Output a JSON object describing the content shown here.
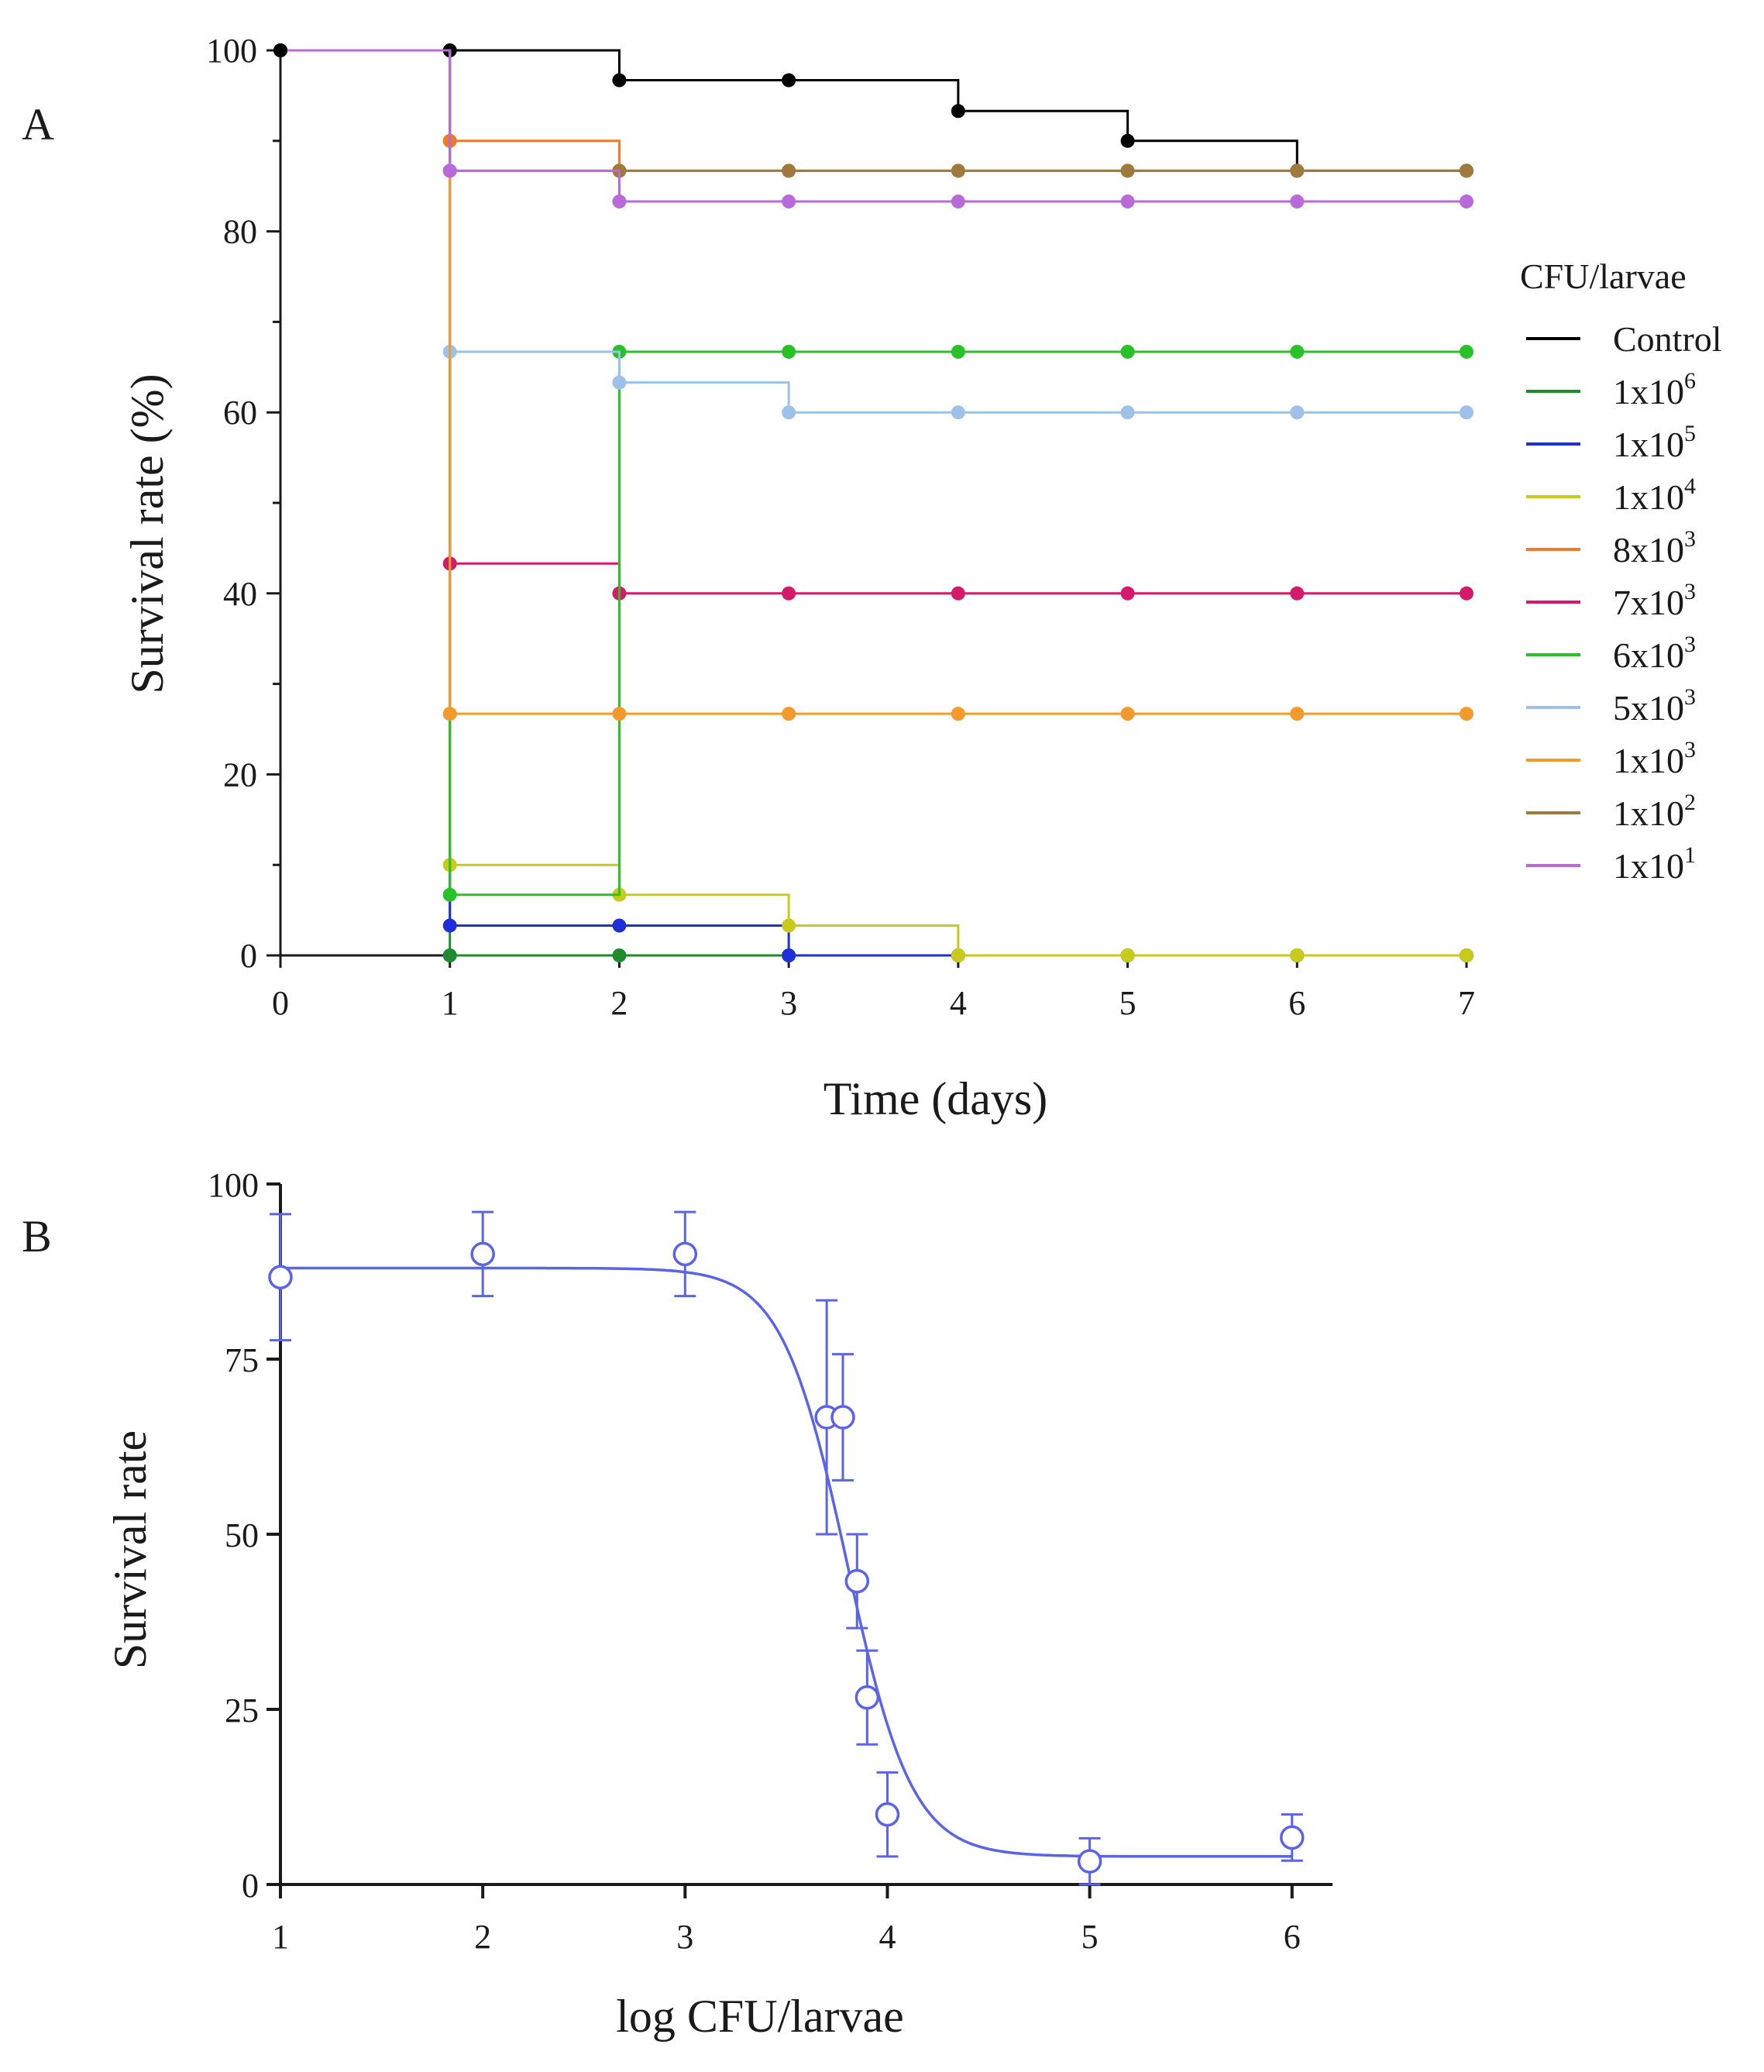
{
  "chart_data": [
    {
      "panel": "A",
      "type": "line",
      "step": true,
      "xlabel": "Time (days)",
      "ylabel": "Survival rate (%)",
      "xlim": [
        0,
        7
      ],
      "ylim": [
        0,
        100
      ],
      "xticks": [
        "0",
        "1",
        "2",
        "3",
        "4",
        "5",
        "6",
        "7"
      ],
      "yticks": [
        "0",
        "20",
        "40",
        "60",
        "80",
        "100"
      ],
      "grid": false,
      "legend": {
        "title": "CFU/larvae",
        "position": "right"
      },
      "series": [
        {
          "name": "Control",
          "mant": "Control",
          "exp": "",
          "color": "#000000",
          "x": [
            0,
            1,
            2,
            3,
            4,
            5,
            6,
            7
          ],
          "values": [
            100,
            100,
            96.7,
            96.7,
            93.3,
            90,
            86.7,
            86.7
          ]
        },
        {
          "name": "1x10^6",
          "mant": "1x10",
          "exp": "6",
          "color": "#1f8a2e",
          "x": [
            1,
            2,
            3,
            4,
            5,
            6,
            7
          ],
          "values": [
            0,
            0,
            0,
            0,
            0,
            0,
            0
          ]
        },
        {
          "name": "1x10^5",
          "mant": "1x10",
          "exp": "5",
          "color": "#1f2fd8",
          "x": [
            1,
            2,
            3,
            4,
            5,
            6,
            7
          ],
          "values": [
            3.3,
            3.3,
            0,
            0,
            0,
            0,
            0
          ]
        },
        {
          "name": "1x10^4",
          "mant": "1x10",
          "exp": "4",
          "color": "#c9cb1c",
          "x": [
            1,
            2,
            3,
            4,
            5,
            6,
            7
          ],
          "values": [
            10,
            6.7,
            3.3,
            0,
            0,
            0,
            0
          ]
        },
        {
          "name": "8x10^3",
          "mant": "8x10",
          "exp": "3",
          "color": "#f07a2a",
          "x": [
            1,
            2,
            3,
            4,
            5,
            6,
            7
          ],
          "values": [
            90,
            86.7,
            86.7,
            86.7,
            86.7,
            86.7,
            86.7
          ]
        },
        {
          "name": "7x10^3",
          "mant": "7x10",
          "exp": "3",
          "color": "#d41a6b",
          "x": [
            1,
            2,
            3,
            4,
            5,
            6,
            7
          ],
          "values": [
            43.3,
            40,
            40,
            40,
            40,
            40,
            40
          ]
        },
        {
          "name": "6x10^3",
          "mant": "6x10",
          "exp": "3",
          "color": "#28c128",
          "x": [
            1,
            2,
            3,
            4,
            5,
            6,
            7
          ],
          "values": [
            6.7,
            66.7,
            66.7,
            66.7,
            66.7,
            66.7,
            66.7
          ]
        },
        {
          "name": "5x10^3",
          "mant": "5x10",
          "exp": "3",
          "color": "#9ec1ea",
          "x": [
            1,
            2,
            3,
            4,
            5,
            6,
            7
          ],
          "values": [
            66.7,
            63.3,
            60,
            60,
            60,
            60,
            60
          ]
        },
        {
          "name": "1x10^3",
          "mant": "1x10",
          "exp": "3",
          "color": "#f29a2c",
          "x": [
            1,
            2,
            3,
            4,
            5,
            6,
            7
          ],
          "values": [
            26.7,
            26.7,
            26.7,
            26.7,
            26.7,
            26.7,
            26.7
          ]
        },
        {
          "name": "1x10^2",
          "mant": "1x10",
          "exp": "2",
          "color": "#a07a3c",
          "x": [
            1,
            2,
            3,
            4,
            5,
            6,
            7
          ],
          "values": [
            86.7,
            86.7,
            86.7,
            86.7,
            86.7,
            86.7,
            86.7
          ]
        },
        {
          "name": "1x10^1",
          "mant": "1x10",
          "exp": "1",
          "color": "#b86ad8",
          "x": [
            1,
            2,
            3,
            4,
            5,
            6,
            7
          ],
          "values": [
            86.7,
            83.3,
            83.3,
            83.3,
            83.3,
            83.3,
            83.3
          ]
        }
      ]
    },
    {
      "panel": "B",
      "type": "scatter",
      "xlabel": "log CFU/larvae",
      "ylabel": "Survival rate",
      "xlim": [
        1,
        6.2
      ],
      "ylim": [
        0,
        100
      ],
      "xticks": [
        "1",
        "2",
        "3",
        "4",
        "5",
        "6"
      ],
      "yticks": [
        "0",
        "25",
        "50",
        "75",
        "100"
      ],
      "grid": false,
      "color": "#5b63e6",
      "points": {
        "x": [
          1,
          2,
          3,
          3.7,
          3.78,
          3.85,
          3.9,
          4,
          5,
          6
        ],
        "y": [
          86.7,
          90,
          90,
          66.7,
          66.7,
          43.3,
          26.7,
          10,
          3.3,
          6.7
        ],
        "error": [
          9,
          6,
          6,
          16.7,
          9,
          6.7,
          6.7,
          6,
          3.3,
          3.3
        ]
      },
      "fit": {
        "type": "sigmoid",
        "top": 88,
        "bottom": 4,
        "log_ec50": 3.8,
        "hill_slope": -2.7
      }
    }
  ]
}
